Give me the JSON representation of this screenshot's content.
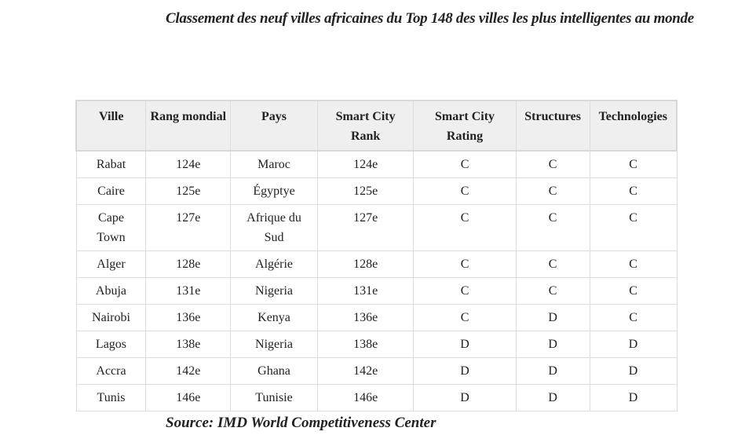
{
  "title": "Classement des neuf villes africaines du Top 148 des villes les plus intelligentes au monde",
  "table": {
    "headers": [
      "Ville",
      "Rang mondial",
      "Pays",
      "Smart City Rank",
      "Smart City Rating",
      "Structures",
      "Technologies"
    ],
    "rows": [
      [
        "Rabat",
        "124e",
        "Maroc",
        "124e",
        "C",
        "C",
        "C"
      ],
      [
        "Caire",
        "125e",
        "Égyptye",
        "125e",
        "C",
        "C",
        "C"
      ],
      [
        "Cape Town",
        "127e",
        "Afrique du Sud",
        "127e",
        "C",
        "C",
        "C"
      ],
      [
        "Alger",
        "128e",
        "Algérie",
        "128e",
        "C",
        "C",
        "C"
      ],
      [
        "Abuja",
        "131e",
        "Nigeria",
        "131e",
        "C",
        "C",
        "C"
      ],
      [
        "Nairobi",
        "136e",
        "Kenya",
        "136e",
        "C",
        "D",
        "C"
      ],
      [
        "Lagos",
        "138e",
        "Nigeria",
        "138e",
        "D",
        "D",
        "D"
      ],
      [
        "Accra",
        "142e",
        "Ghana",
        "142e",
        "D",
        "D",
        "D"
      ],
      [
        "Tunis",
        "146e",
        "Tunisie",
        "146e",
        "D",
        "D",
        "D"
      ]
    ]
  },
  "source": "Source: IMD World Competitiveness Center"
}
